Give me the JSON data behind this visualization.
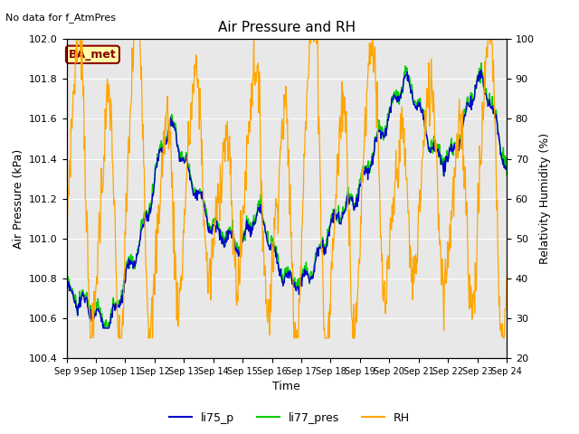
{
  "title": "Air Pressure and RH",
  "top_left_text": "No data for f_AtmPres",
  "box_label": "BA_met",
  "xlabel": "Time",
  "ylabel_left": "Air Pressure (kPa)",
  "ylabel_right": "Relativity Humidity (%)",
  "ylim_left": [
    100.4,
    102.0
  ],
  "ylim_right": [
    20,
    100
  ],
  "yticks_left": [
    100.4,
    100.6,
    100.8,
    101.0,
    101.2,
    101.4,
    101.6,
    101.8,
    102.0
  ],
  "yticks_right": [
    20,
    30,
    40,
    50,
    60,
    70,
    80,
    90,
    100
  ],
  "xtick_labels": [
    "Sep 9",
    "Sep 10",
    "Sep 11",
    "Sep 12",
    "Sep 13",
    "Sep 14",
    "Sep 15",
    "Sep 16",
    "Sep 17",
    "Sep 18",
    "Sep 19",
    "Sep 20",
    "Sep 21",
    "Sep 22",
    "Sep 23",
    "Sep 24"
  ],
  "color_li75": "#0000cc",
  "color_li77": "#00cc00",
  "color_rh": "#ffa500",
  "legend_labels": [
    "li75_p",
    "li77_pres",
    "RH"
  ],
  "bg_color": "#e8e8e8",
  "title_fontsize": 11,
  "label_fontsize": 9,
  "tick_fontsize": 8
}
